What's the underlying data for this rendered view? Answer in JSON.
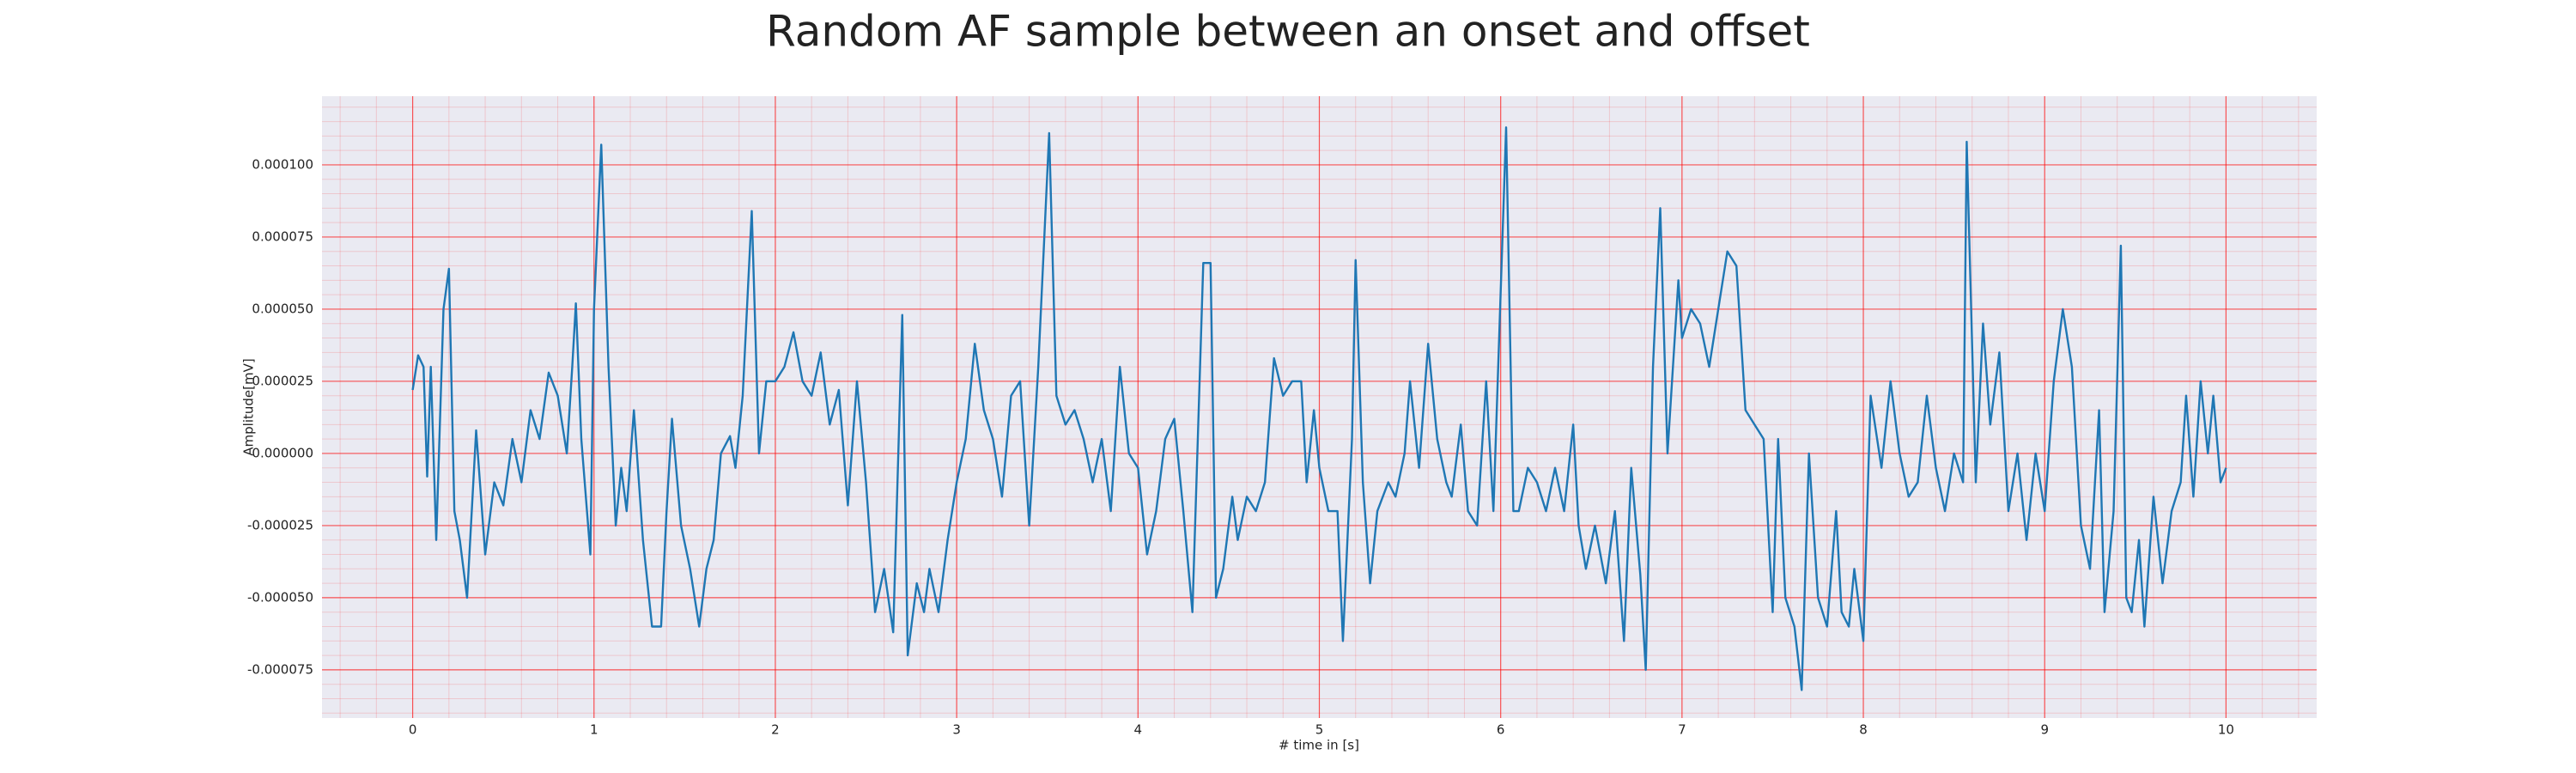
{
  "chart_data": {
    "type": "line",
    "title": "Random AF sample between an onset and offset",
    "xlabel": "# time in [s]",
    "ylabel": "Amplitude[mV]",
    "xlim": [
      -0.5,
      10.5
    ],
    "ylim": [
      -9.17e-05,
      0.0001238
    ],
    "xticks": [
      0,
      1,
      2,
      3,
      4,
      5,
      6,
      7,
      8,
      9,
      10
    ],
    "yticks": [
      {
        "value": -7.5e-05,
        "label": "-0.000075"
      },
      {
        "value": -5e-05,
        "label": "-0.000050"
      },
      {
        "value": -2.5e-05,
        "label": "-0.000025"
      },
      {
        "value": 0,
        "label": "0.000000"
      },
      {
        "value": 2.5e-05,
        "label": "0.000025"
      },
      {
        "value": 5e-05,
        "label": "0.000050"
      },
      {
        "value": 7.5e-05,
        "label": "0.000075"
      },
      {
        "value": 0.0001,
        "label": "0.000100"
      }
    ],
    "grid": true,
    "minor_grid": true,
    "grid_color": "#ff0000",
    "background": "#eaeaf2",
    "series": [
      {
        "color": "#1f77b4",
        "x": [
          0.0,
          0.03,
          0.06,
          0.08,
          0.1,
          0.13,
          0.17,
          0.2,
          0.23,
          0.26,
          0.3,
          0.35,
          0.4,
          0.45,
          0.5,
          0.55,
          0.6,
          0.65,
          0.7,
          0.75,
          0.8,
          0.85,
          0.88,
          0.9,
          0.93,
          0.98,
          1.0,
          1.04,
          1.08,
          1.12,
          1.15,
          1.18,
          1.22,
          1.27,
          1.32,
          1.37,
          1.4,
          1.43,
          1.48,
          1.53,
          1.58,
          1.62,
          1.66,
          1.7,
          1.75,
          1.78,
          1.82,
          1.87,
          1.91,
          1.95,
          2.0,
          2.05,
          2.1,
          2.15,
          2.2,
          2.25,
          2.3,
          2.35,
          2.4,
          2.45,
          2.5,
          2.55,
          2.6,
          2.65,
          2.7,
          2.73,
          2.78,
          2.82,
          2.85,
          2.9,
          2.95,
          3.0,
          3.05,
          3.1,
          3.15,
          3.2,
          3.25,
          3.3,
          3.35,
          3.4,
          3.45,
          3.51,
          3.55,
          3.6,
          3.65,
          3.7,
          3.75,
          3.8,
          3.85,
          3.9,
          3.95,
          4.0,
          4.05,
          4.1,
          4.15,
          4.2,
          4.25,
          4.3,
          4.36,
          4.4,
          4.43,
          4.47,
          4.52,
          4.55,
          4.6,
          4.65,
          4.7,
          4.75,
          4.8,
          4.85,
          4.9,
          4.93,
          4.97,
          5.0,
          5.05,
          5.1,
          5.13,
          5.18,
          5.2,
          5.24,
          5.28,
          5.32,
          5.38,
          5.42,
          5.47,
          5.5,
          5.55,
          5.6,
          5.65,
          5.7,
          5.73,
          5.78,
          5.82,
          5.87,
          5.92,
          5.96,
          6.03,
          6.07,
          6.1,
          6.15,
          6.2,
          6.25,
          6.3,
          6.35,
          6.4,
          6.43,
          6.47,
          6.52,
          6.58,
          6.63,
          6.68,
          6.72,
          6.77,
          6.8,
          6.84,
          6.88,
          6.92,
          6.98,
          7.0,
          7.05,
          7.1,
          7.15,
          7.2,
          7.25,
          7.3,
          7.35,
          7.4,
          7.45,
          7.5,
          7.53,
          7.57,
          7.62,
          7.66,
          7.7,
          7.75,
          7.8,
          7.85,
          7.88,
          7.92,
          7.95,
          8.0,
          8.04,
          8.1,
          8.15,
          8.2,
          8.25,
          8.3,
          8.35,
          8.4,
          8.45,
          8.5,
          8.55,
          8.57,
          8.62,
          8.66,
          8.7,
          8.75,
          8.8,
          8.85,
          8.9,
          8.95,
          9.0,
          9.05,
          9.1,
          9.15,
          9.2,
          9.25,
          9.3,
          9.33,
          9.38,
          9.42,
          9.45,
          9.48,
          9.52,
          9.55,
          9.6,
          9.65,
          9.7,
          9.75,
          9.78,
          9.82,
          9.86,
          9.9,
          9.93,
          9.97,
          10.0
        ],
        "values": [
          2.2e-05,
          3.4e-05,
          3e-05,
          -8e-06,
          3e-05,
          -3e-05,
          5e-05,
          6.4e-05,
          -2e-05,
          -3e-05,
          -5e-05,
          8e-06,
          -3.5e-05,
          -1e-05,
          -1.8e-05,
          5e-06,
          -1e-05,
          1.5e-05,
          5e-06,
          2.8e-05,
          2e-05,
          0,
          3e-05,
          5.2e-05,
          5e-06,
          -3.5e-05,
          5e-05,
          0.000107,
          3e-05,
          -2.5e-05,
          -5e-06,
          -2e-05,
          1.5e-05,
          -3e-05,
          -6e-05,
          -6e-05,
          -2e-05,
          1.2e-05,
          -2.5e-05,
          -4e-05,
          -6e-05,
          -4e-05,
          -3e-05,
          0,
          6e-06,
          -5e-06,
          2e-05,
          8.4e-05,
          0,
          2.5e-05,
          2.5e-05,
          3e-05,
          4.2e-05,
          2.5e-05,
          2e-05,
          3.5e-05,
          1e-05,
          2.2e-05,
          -1.8e-05,
          2.5e-05,
          -1e-05,
          -5.5e-05,
          -4e-05,
          -6.2e-05,
          4.8e-05,
          -7e-05,
          -4.5e-05,
          -5.5e-05,
          -4e-05,
          -5.5e-05,
          -3e-05,
          -1e-05,
          5e-06,
          3.8e-05,
          1.5e-05,
          5e-06,
          -1.5e-05,
          2e-05,
          2.5e-05,
          -2.5e-05,
          3e-05,
          0.000111,
          2e-05,
          1e-05,
          1.5e-05,
          5e-06,
          -1e-05,
          5e-06,
          -2e-05,
          3e-05,
          0,
          -5e-06,
          -3.5e-05,
          -2e-05,
          5e-06,
          1.2e-05,
          -2e-05,
          -5.5e-05,
          6.6e-05,
          6.6e-05,
          -5e-05,
          -4e-05,
          -1.5e-05,
          -3e-05,
          -1.5e-05,
          -2e-05,
          -1e-05,
          3.3e-05,
          2e-05,
          2.5e-05,
          2.5e-05,
          -1e-05,
          1.5e-05,
          -5e-06,
          -2e-05,
          -2e-05,
          -6.5e-05,
          5e-06,
          6.7e-05,
          -1e-05,
          -4.5e-05,
          -2e-05,
          -1e-05,
          -1.5e-05,
          0,
          2.5e-05,
          -5e-06,
          3.8e-05,
          5e-06,
          -1e-05,
          -1.5e-05,
          1e-05,
          -2e-05,
          -2.5e-05,
          2.5e-05,
          -2e-05,
          0.000113,
          -2e-05,
          -2e-05,
          -5e-06,
          -1e-05,
          -2e-05,
          -5e-06,
          -2e-05,
          1e-05,
          -2.5e-05,
          -4e-05,
          -2.5e-05,
          -4.5e-05,
          -2e-05,
          -6.5e-05,
          -5e-06,
          -4.2e-05,
          -7.5e-05,
          3e-05,
          8.5e-05,
          0,
          6e-05,
          4e-05,
          5e-05,
          4.5e-05,
          3e-05,
          5e-05,
          7e-05,
          6.5e-05,
          1.5e-05,
          1e-05,
          5e-06,
          -5.5e-05,
          5e-06,
          -5e-05,
          -6e-05,
          -8.2e-05,
          0,
          -5e-05,
          -6e-05,
          -2e-05,
          -5.5e-05,
          -6e-05,
          -4e-05,
          -6.5e-05,
          2e-05,
          -5e-06,
          2.5e-05,
          0,
          -1.5e-05,
          -1e-05,
          2e-05,
          -5e-06,
          -2e-05,
          0,
          -1e-05,
          0.000108,
          -1e-05,
          4.5e-05,
          1e-05,
          3.5e-05,
          -2e-05,
          0,
          -3e-05,
          0,
          -2e-05,
          2.5e-05,
          5e-05,
          3e-05,
          -2.5e-05,
          -4e-05,
          1.5e-05,
          -5.5e-05,
          -2e-05,
          7.2e-05,
          -5e-05,
          -5.5e-05,
          -3e-05,
          -6e-05,
          -1.5e-05,
          -4.5e-05,
          -2e-05,
          -1e-05,
          2e-05,
          -1.5e-05,
          2.5e-05,
          0,
          2e-05,
          -1e-05,
          -5e-06
        ]
      }
    ]
  }
}
